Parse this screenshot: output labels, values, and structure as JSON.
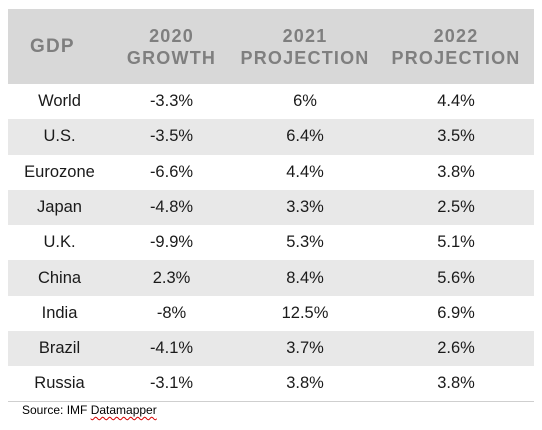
{
  "chart_data": {
    "type": "table",
    "headers": [
      {
        "line1": "GDP",
        "line2": ""
      },
      {
        "line1": "2020",
        "line2": "GROWTH"
      },
      {
        "line1": "2021",
        "line2": "PROJECTION"
      },
      {
        "line1": "2022",
        "line2": "PROJECTION"
      }
    ],
    "rows": [
      {
        "region": "World",
        "growth_2020": "-3.3%",
        "projection_2021": "6%",
        "projection_2022": "4.4%"
      },
      {
        "region": "U.S.",
        "growth_2020": "-3.5%",
        "projection_2021": "6.4%",
        "projection_2022": "3.5%"
      },
      {
        "region": "Eurozone",
        "growth_2020": "-6.6%",
        "projection_2021": "4.4%",
        "projection_2022": "3.8%"
      },
      {
        "region": "Japan",
        "growth_2020": "-4.8%",
        "projection_2021": "3.3%",
        "projection_2022": "2.5%"
      },
      {
        "region": "U.K.",
        "growth_2020": "-9.9%",
        "projection_2021": "5.3%",
        "projection_2022": "5.1%"
      },
      {
        "region": "China",
        "growth_2020": "2.3%",
        "projection_2021": "8.4%",
        "projection_2022": "5.6%"
      },
      {
        "region": "India",
        "growth_2020": "-8%",
        "projection_2021": "12.5%",
        "projection_2022": "6.9%"
      },
      {
        "region": "Brazil",
        "growth_2020": "-4.1%",
        "projection_2021": "3.7%",
        "projection_2022": "2.6%"
      },
      {
        "region": "Russia",
        "growth_2020": "-3.1%",
        "projection_2021": "3.8%",
        "projection_2022": "3.8%"
      }
    ]
  },
  "source": {
    "prefix": "Source: IMF ",
    "name": "Datamapper"
  }
}
